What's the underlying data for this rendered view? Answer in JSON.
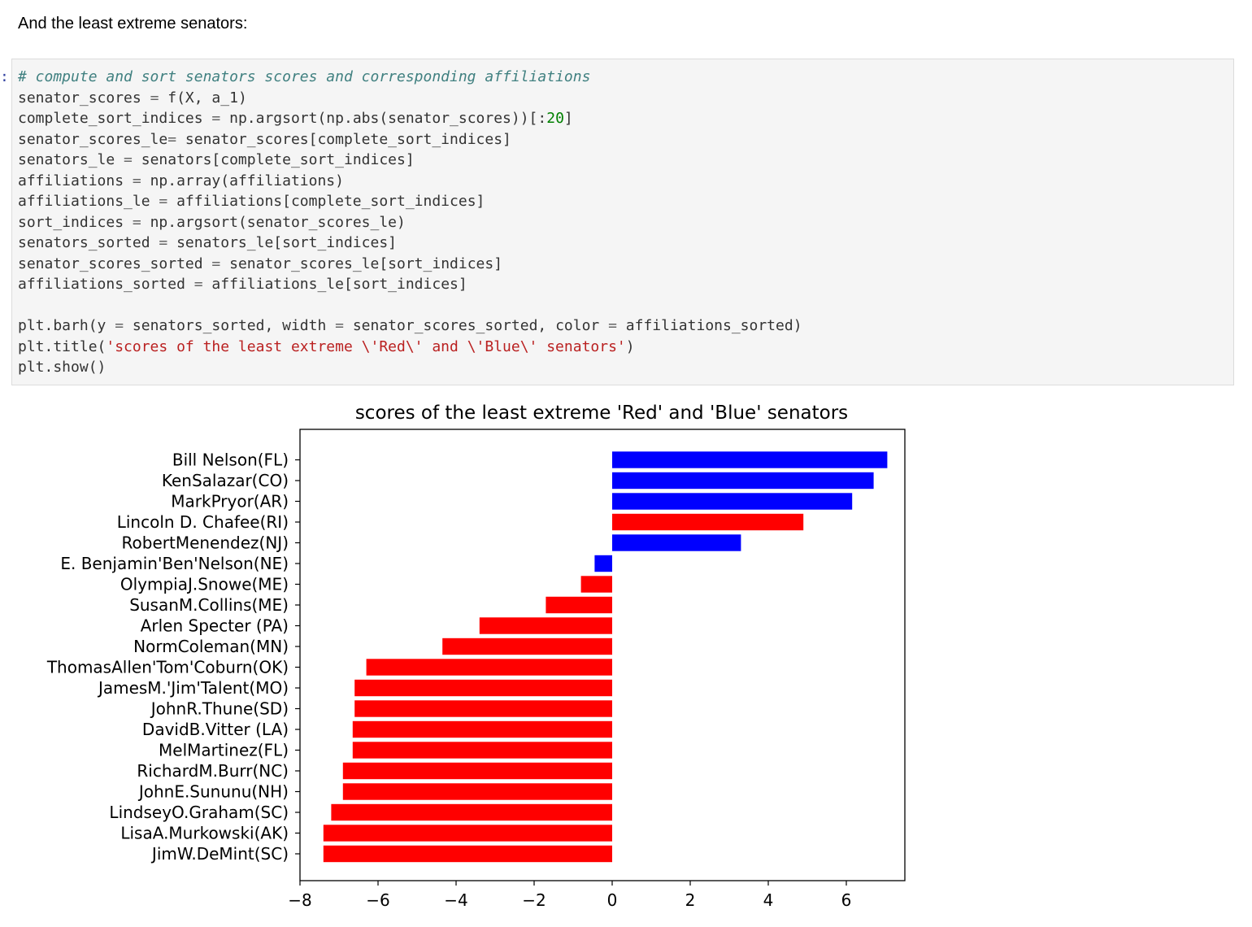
{
  "markdown": {
    "text": "And the least extreme senators:"
  },
  "prompt": ":",
  "code": {
    "lines": [
      [
        {
          "t": "c",
          "v": "# compute and sort senators scores and corresponding affiliations"
        }
      ],
      [
        {
          "t": "n",
          "v": "senator_scores "
        },
        {
          "t": "o",
          "v": "="
        },
        {
          "t": "n",
          "v": " f(X, a_1)"
        }
      ],
      [
        {
          "t": "n",
          "v": "complete_sort_indices "
        },
        {
          "t": "o",
          "v": "="
        },
        {
          "t": "n",
          "v": " np.argsort(np.abs(senator_scores))[:"
        },
        {
          "t": "m",
          "v": "20"
        },
        {
          "t": "n",
          "v": "]"
        }
      ],
      [
        {
          "t": "n",
          "v": "senator_scores_le"
        },
        {
          "t": "o",
          "v": "="
        },
        {
          "t": "n",
          "v": " senator_scores[complete_sort_indices]"
        }
      ],
      [
        {
          "t": "n",
          "v": "senators_le "
        },
        {
          "t": "o",
          "v": "="
        },
        {
          "t": "n",
          "v": " senators[complete_sort_indices]"
        }
      ],
      [
        {
          "t": "n",
          "v": "affiliations "
        },
        {
          "t": "o",
          "v": "="
        },
        {
          "t": "n",
          "v": " np.array(affiliations)"
        }
      ],
      [
        {
          "t": "n",
          "v": "affiliations_le "
        },
        {
          "t": "o",
          "v": "="
        },
        {
          "t": "n",
          "v": " affiliations[complete_sort_indices]"
        }
      ],
      [
        {
          "t": "n",
          "v": "sort_indices "
        },
        {
          "t": "o",
          "v": "="
        },
        {
          "t": "n",
          "v": " np.argsort(senator_scores_le)"
        }
      ],
      [
        {
          "t": "n",
          "v": "senators_sorted "
        },
        {
          "t": "o",
          "v": "="
        },
        {
          "t": "n",
          "v": " senators_le[sort_indices]"
        }
      ],
      [
        {
          "t": "n",
          "v": "senator_scores_sorted "
        },
        {
          "t": "o",
          "v": "="
        },
        {
          "t": "n",
          "v": " senator_scores_le[sort_indices]"
        }
      ],
      [
        {
          "t": "n",
          "v": "affiliations_sorted "
        },
        {
          "t": "o",
          "v": "="
        },
        {
          "t": "n",
          "v": " affiliations_le[sort_indices]"
        }
      ],
      [],
      [
        {
          "t": "n",
          "v": "plt.barh(y "
        },
        {
          "t": "o",
          "v": "="
        },
        {
          "t": "n",
          "v": " senators_sorted, width "
        },
        {
          "t": "o",
          "v": "="
        },
        {
          "t": "n",
          "v": " senator_scores_sorted, color "
        },
        {
          "t": "o",
          "v": "="
        },
        {
          "t": "n",
          "v": " affiliations_sorted)"
        }
      ],
      [
        {
          "t": "n",
          "v": "plt.title("
        },
        {
          "t": "s",
          "v": "'scores of the least extreme \\'Red\\' and \\'Blue\\' senators'"
        },
        {
          "t": "n",
          "v": ")"
        }
      ],
      [
        {
          "t": "n",
          "v": "plt.show()"
        }
      ]
    ]
  },
  "chart_data": {
    "type": "bar",
    "orientation": "horizontal",
    "title": "scores of the least extreme 'Red' and 'Blue' senators",
    "xlabel": "",
    "ylabel": "",
    "xlim": [
      -8,
      7.5
    ],
    "xticks": [
      -8,
      -6,
      -4,
      -2,
      0,
      2,
      4,
      6
    ],
    "xtick_labels": [
      "−8",
      "−6",
      "−4",
      "−2",
      "0",
      "2",
      "4",
      "6"
    ],
    "grid": false,
    "colors": {
      "red": "#ff0000",
      "blue": "#0000ff"
    },
    "bars": [
      {
        "label": "JimW.DeMint(SC)",
        "value": -7.4,
        "color": "red"
      },
      {
        "label": "LisaA.Murkowski(AK)",
        "value": -7.4,
        "color": "red"
      },
      {
        "label": "LindseyO.Graham(SC)",
        "value": -7.2,
        "color": "red"
      },
      {
        "label": "JohnE.Sununu(NH)",
        "value": -6.9,
        "color": "red"
      },
      {
        "label": "RichardM.Burr(NC)",
        "value": -6.9,
        "color": "red"
      },
      {
        "label": "MelMartinez(FL)",
        "value": -6.65,
        "color": "red"
      },
      {
        "label": "DavidB.Vitter (LA)",
        "value": -6.65,
        "color": "red"
      },
      {
        "label": "JohnR.Thune(SD)",
        "value": -6.6,
        "color": "red"
      },
      {
        "label": "JamesM.'Jim'Talent(MO)",
        "value": -6.6,
        "color": "red"
      },
      {
        "label": "ThomasAllen'Tom'Coburn(OK)",
        "value": -6.3,
        "color": "red"
      },
      {
        "label": "NormColeman(MN)",
        "value": -4.35,
        "color": "red"
      },
      {
        "label": "Arlen Specter (PA)",
        "value": -3.4,
        "color": "red"
      },
      {
        "label": "SusanM.Collins(ME)",
        "value": -1.7,
        "color": "red"
      },
      {
        "label": "OlympiaJ.Snowe(ME)",
        "value": -0.8,
        "color": "red"
      },
      {
        "label": "E. Benjamin'Ben'Nelson(NE)",
        "value": -0.45,
        "color": "blue"
      },
      {
        "label": "RobertMenendez(NJ)",
        "value": 3.3,
        "color": "blue"
      },
      {
        "label": "Lincoln D. Chafee(RI)",
        "value": 4.9,
        "color": "red"
      },
      {
        "label": "MarkPryor(AR)",
        "value": 6.15,
        "color": "blue"
      },
      {
        "label": "KenSalazar(CO)",
        "value": 6.7,
        "color": "blue"
      },
      {
        "label": "Bill Nelson(FL)",
        "value": 7.05,
        "color": "blue"
      }
    ]
  }
}
